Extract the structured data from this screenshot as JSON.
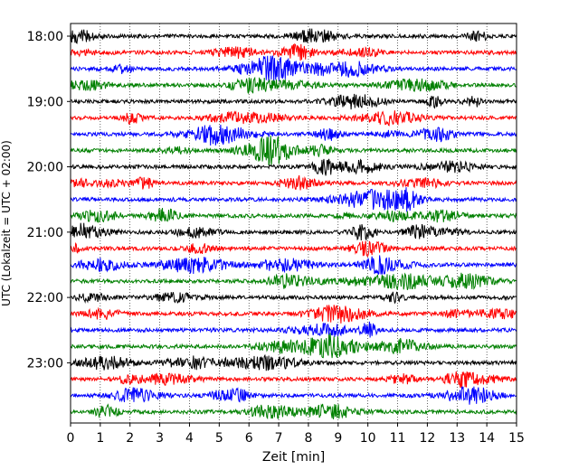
{
  "chart_data": {
    "type": "line",
    "xlabel": "Zeit  [min]",
    "ylabel": "UTC (Lokalzeit = UTC + 02:00)",
    "xlim": [
      0,
      15
    ],
    "x_ticks": [
      "0",
      "1",
      "2",
      "3",
      "4",
      "5",
      "6",
      "7",
      "8",
      "9",
      "10",
      "11",
      "12",
      "13",
      "14",
      "15"
    ],
    "y_ticks": [
      "18:00",
      "19:00",
      "20:00",
      "21:00",
      "22:00",
      "23:00"
    ],
    "grid": "vertical dotted",
    "trace_colors": [
      "#000000",
      "#ff0000",
      "#0000ff",
      "#008000"
    ],
    "series": [
      {
        "start": "18:00",
        "color": "#000000"
      },
      {
        "start": "18:15",
        "color": "#ff0000"
      },
      {
        "start": "18:30",
        "color": "#0000ff"
      },
      {
        "start": "18:45",
        "color": "#008000"
      },
      {
        "start": "19:00",
        "color": "#000000"
      },
      {
        "start": "19:15",
        "color": "#ff0000"
      },
      {
        "start": "19:30",
        "color": "#0000ff"
      },
      {
        "start": "19:45",
        "color": "#008000"
      },
      {
        "start": "20:00",
        "color": "#000000"
      },
      {
        "start": "20:15",
        "color": "#ff0000"
      },
      {
        "start": "20:30",
        "color": "#0000ff"
      },
      {
        "start": "20:45",
        "color": "#008000"
      },
      {
        "start": "21:00",
        "color": "#000000"
      },
      {
        "start": "21:15",
        "color": "#ff0000"
      },
      {
        "start": "21:30",
        "color": "#0000ff"
      },
      {
        "start": "21:45",
        "color": "#008000"
      },
      {
        "start": "22:00",
        "color": "#000000"
      },
      {
        "start": "22:15",
        "color": "#ff0000"
      },
      {
        "start": "22:30",
        "color": "#0000ff"
      },
      {
        "start": "22:45",
        "color": "#008000"
      },
      {
        "start": "23:00",
        "color": "#000000"
      },
      {
        "start": "23:15",
        "color": "#ff0000"
      },
      {
        "start": "23:30",
        "color": "#0000ff"
      },
      {
        "start": "23:45",
        "color": "#008000"
      }
    ]
  }
}
